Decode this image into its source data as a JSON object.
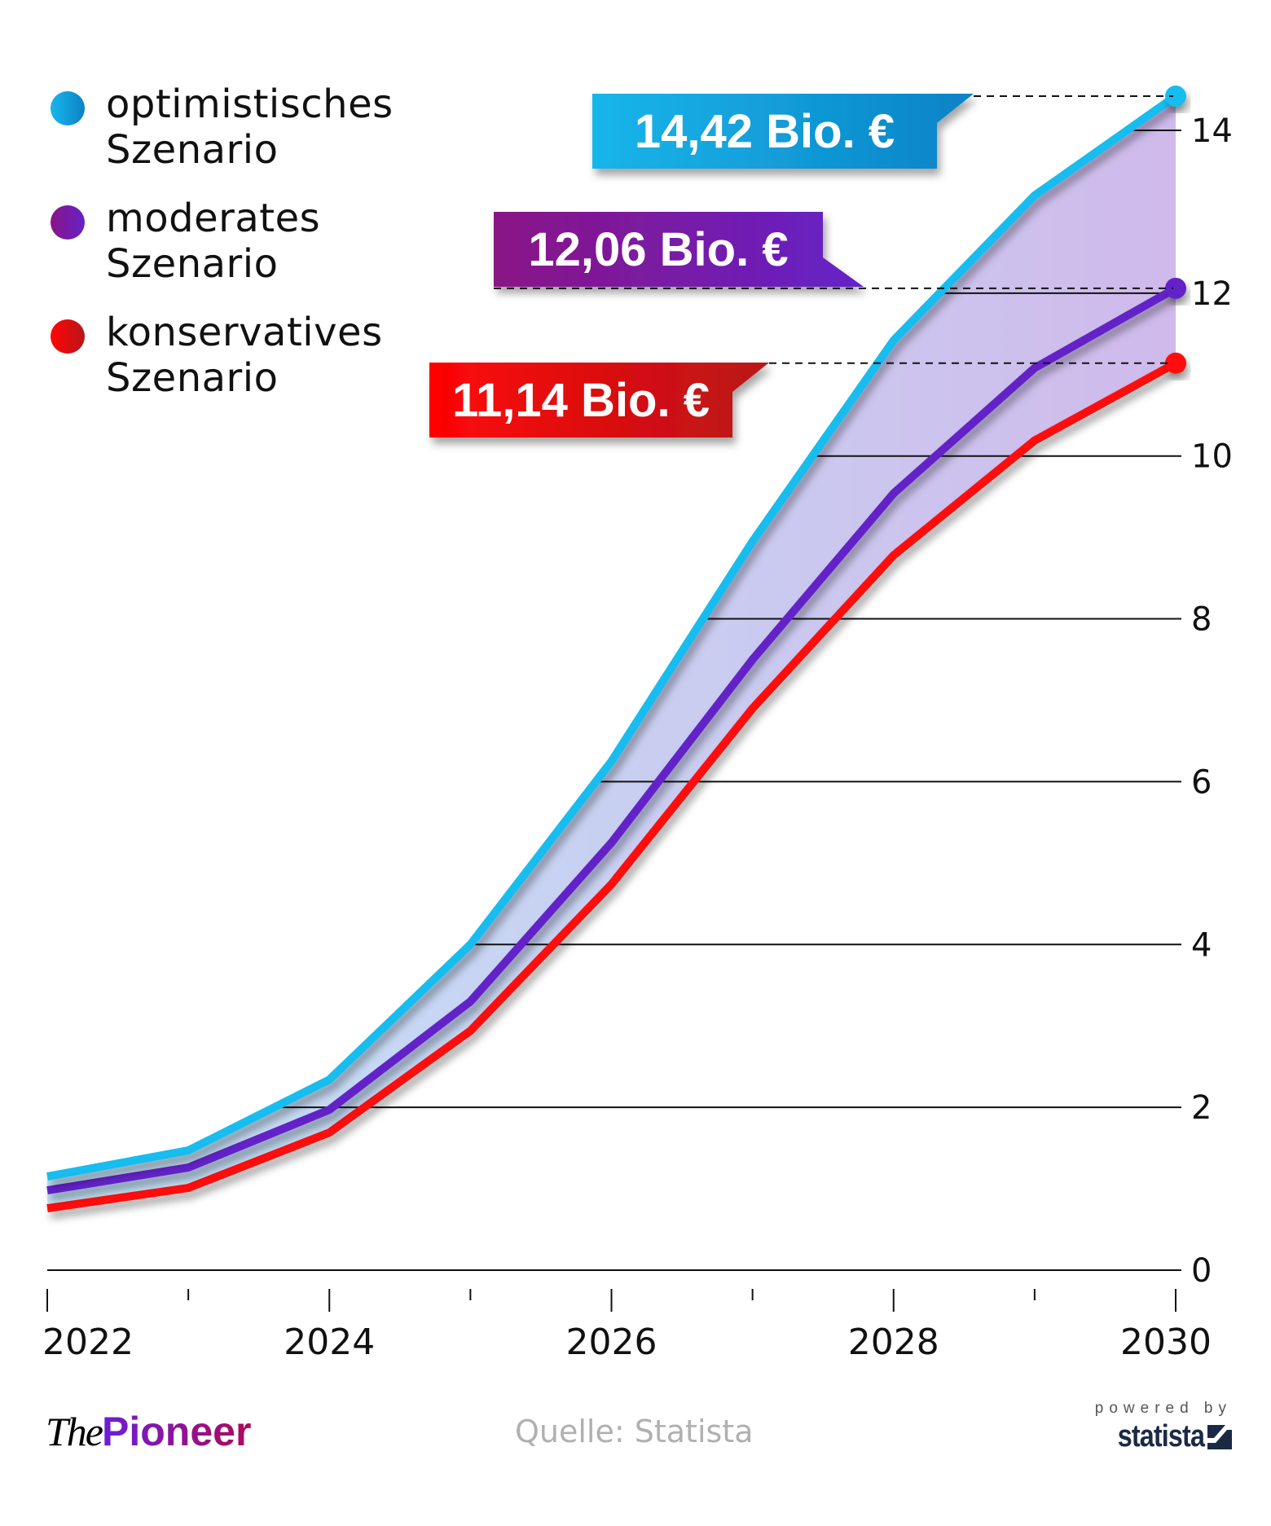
{
  "chart_data": {
    "type": "line",
    "title": "",
    "xlabel": "",
    "ylabel": "",
    "x": [
      2022,
      2023,
      2024,
      2025,
      2026,
      2027,
      2028,
      2029,
      2030
    ],
    "x_tick_labels": [
      "2022",
      "",
      "2024",
      "",
      "2026",
      "",
      "2028",
      "",
      "2030"
    ],
    "ylim": [
      0,
      14.5
    ],
    "y_ticks": [
      0,
      2,
      4,
      6,
      8,
      10,
      12,
      14
    ],
    "y_tick_labels": [
      "0",
      "2",
      "4",
      "6",
      "8",
      "10",
      "12",
      "14"
    ],
    "y_axis_side": "right",
    "grid": true,
    "legend_position": "top-left",
    "series": [
      {
        "name": "optimistisches Szenario",
        "label_line1": "optimistisches",
        "label_line2": "Szenario",
        "color": "#17bdee",
        "gradient": [
          "#19b6ea",
          "#0b82c6"
        ],
        "values": [
          1.15,
          1.47,
          2.34,
          4.0,
          6.25,
          8.95,
          11.42,
          13.2,
          14.42
        ],
        "end_label": "14,42 Bio. €"
      },
      {
        "name": "moderates Szenario",
        "label_line1": "moderates",
        "label_line2": "Szenario",
        "color": "#6422c8",
        "gradient": [
          "#8a1585",
          "#6422c8"
        ],
        "values": [
          0.98,
          1.26,
          1.97,
          3.3,
          5.25,
          7.5,
          9.54,
          11.08,
          12.06
        ],
        "end_label": "12,06 Bio. €"
      },
      {
        "name": "konservatives Szenario",
        "label_line1": "konservatives",
        "label_line2": "Szenario",
        "color": "#ff0a0a",
        "gradient": [
          "#ff0505",
          "#b8161a"
        ],
        "values": [
          0.76,
          1.01,
          1.69,
          2.94,
          4.74,
          6.9,
          8.78,
          10.19,
          11.14
        ],
        "end_label": "11,14 Bio. €"
      }
    ],
    "band_fill": [
      "#bfe4f8",
      "#d2bcec"
    ]
  },
  "footer": {
    "logo_the": "The",
    "logo_pioneer": "Pioneer",
    "source": "Quelle: Statista",
    "powered_by": "powered by",
    "statista": "statista"
  }
}
